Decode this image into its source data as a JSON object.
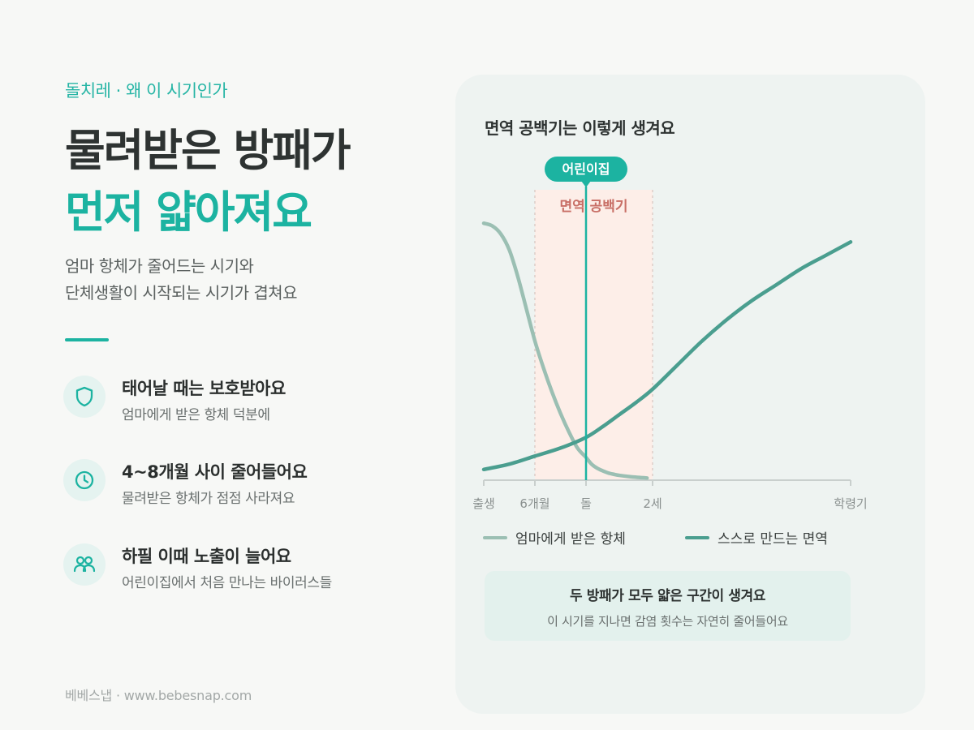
{
  "header": {
    "eyebrow": "돌치레 · 왜 이 시기인가",
    "title_line1": "물려받은 방패가",
    "title_line2": "먼저 얇아져요",
    "subtitle_line1": "엄마 항체가 줄어드는 시기와",
    "subtitle_line2": "단체생활이 시작되는 시기가 겹쳐요"
  },
  "features": [
    {
      "icon": "shield-icon",
      "title": "태어날 때는 보호받아요",
      "desc": "엄마에게 받은 항체 덕분에"
    },
    {
      "icon": "clock-icon",
      "title": "4~8개월 사이 줄어들어요",
      "desc": "물려받은 항체가 점점 사라져요"
    },
    {
      "icon": "people-icon",
      "title": "하필 이때 노출이 늘어요",
      "desc": "어린이집에서 처음 만나는 바이러스들"
    }
  ],
  "footer": "베베스냅 · www.bebesnap.com",
  "colors": {
    "accent": "#1cb3a1",
    "maternal": "#9bbfb3",
    "own": "#4a9e8f",
    "gap": "#fdeee8",
    "gap_label": "#c86f66"
  },
  "chart_data": {
    "type": "line",
    "title": "면역 공백기는 이렇게 생겨요",
    "x_ticks": [
      {
        "x": 0,
        "label": "출생"
      },
      {
        "x": 6,
        "label": "6개월"
      },
      {
        "x": 12,
        "label": "돌"
      },
      {
        "x": 24,
        "label": "2세"
      },
      {
        "x": 72,
        "label": "학령기"
      }
    ],
    "ylim": [
      0,
      1
    ],
    "series": [
      {
        "name": "엄마에게 받은 항체",
        "color": "#9bbfb3",
        "x": [
          0,
          1,
          2,
          3,
          4,
          5,
          6,
          7,
          8,
          9,
          10,
          11,
          12,
          13,
          14,
          15,
          16,
          17,
          18,
          20,
          23
        ],
        "y": [
          0.96,
          0.95,
          0.92,
          0.86,
          0.76,
          0.64,
          0.52,
          0.42,
          0.33,
          0.25,
          0.18,
          0.12,
          0.085,
          0.06,
          0.045,
          0.035,
          0.027,
          0.022,
          0.018,
          0.013,
          0.008
        ]
      },
      {
        "name": "스스로 만드는 면역",
        "color": "#4a9e8f",
        "x": [
          0,
          3,
          6,
          9,
          12,
          15,
          18,
          21,
          24,
          30,
          36,
          42,
          48,
          54,
          60,
          66,
          72
        ],
        "y": [
          0.04,
          0.06,
          0.09,
          0.12,
          0.16,
          0.2,
          0.245,
          0.29,
          0.34,
          0.43,
          0.52,
          0.6,
          0.67,
          0.73,
          0.79,
          0.84,
          0.89
        ]
      }
    ],
    "annotations": {
      "gap_band": {
        "x_start": 6,
        "x_end": 24,
        "label": "면역 공백기"
      },
      "marker": {
        "x": 12,
        "label": "어린이집"
      }
    },
    "note_title": "두 방패가 모두 얇은 구간이 생겨요",
    "note_text": "이 시기를 지나면 감염 횟수는 자연히 줄어들어요"
  }
}
